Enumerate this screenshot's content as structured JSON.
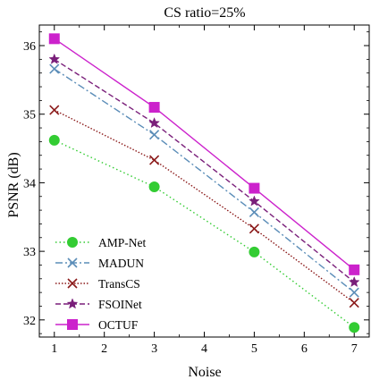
{
  "chart_data": {
    "type": "line",
    "title": "CS ratio=25%",
    "xlabel": "Noise",
    "ylabel": "PSNR (dB)",
    "xlim": [
      0.7,
      7.3
    ],
    "ylim": [
      31.75,
      36.3
    ],
    "xticks": [
      1,
      2,
      3,
      4,
      5,
      6,
      7
    ],
    "yticks": [
      32,
      33,
      34,
      35,
      36
    ],
    "grid": false,
    "legend_position": "bottom-left",
    "x": [
      1,
      3,
      5,
      7
    ],
    "series": [
      {
        "name": "AMP-Net",
        "values": [
          34.62,
          33.94,
          32.99,
          31.89
        ],
        "color": "#33cc33",
        "dash": "dotted",
        "marker": "circle"
      },
      {
        "name": "MADUN",
        "values": [
          35.66,
          34.7,
          33.57,
          32.4
        ],
        "color": "#5b8db8",
        "dash": "dashdot",
        "marker": "x"
      },
      {
        "name": "TransCS",
        "values": [
          35.06,
          34.33,
          33.33,
          32.25
        ],
        "color": "#8b1a1a",
        "dash": "dotted-dense",
        "marker": "x"
      },
      {
        "name": "FSOINet",
        "values": [
          35.8,
          34.87,
          33.73,
          32.55
        ],
        "color": "#7a1f7a",
        "dash": "dashed",
        "marker": "star"
      },
      {
        "name": "OCTUF",
        "values": [
          36.1,
          35.1,
          33.92,
          32.73
        ],
        "color": "#cc22cc",
        "dash": "solid",
        "marker": "square"
      }
    ]
  }
}
